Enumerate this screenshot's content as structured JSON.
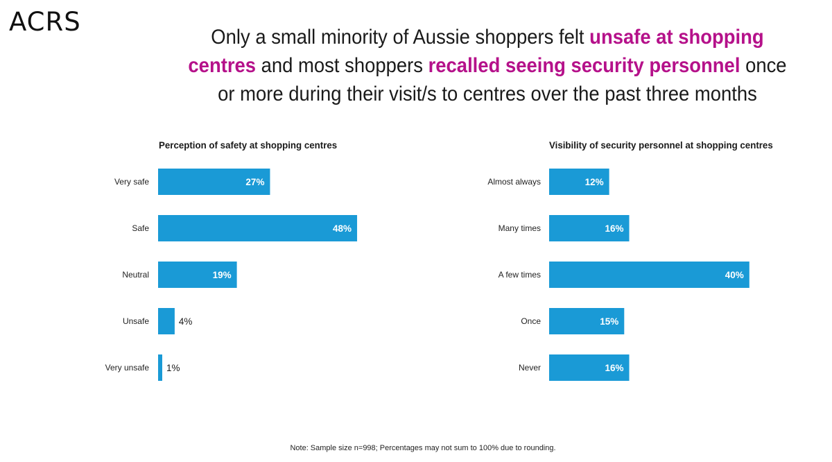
{
  "logo": "ACRS",
  "headline": {
    "part1": "Only a small minority of Aussie shoppers felt ",
    "highlight1": "unsafe at shopping centres",
    "part2": " and most shoppers ",
    "highlight2": "recalled seeing security personnel",
    "part3": " once or more during their visit/s to centres over the past three months",
    "highlight_color": "#b5118a"
  },
  "note": "Note: Sample size n=998; Percentages may not sum to 100% due to rounding.",
  "chart_data": [
    {
      "type": "bar",
      "orientation": "horizontal",
      "title": "Perception of safety at shopping centres",
      "categories": [
        "Very safe",
        "Safe",
        "Neutral",
        "Unsafe",
        "Very unsafe"
      ],
      "values": [
        27,
        48,
        19,
        4,
        1
      ],
      "value_labels": [
        "27%",
        "48%",
        "19%",
        "4%",
        "1%"
      ],
      "unit": "%",
      "bar_color": "#1a9ad6",
      "xlim": [
        0,
        100
      ],
      "grid": false,
      "legend": "none"
    },
    {
      "type": "bar",
      "orientation": "horizontal",
      "title": "Visibility of security personnel at shopping centres",
      "categories": [
        "Almost always",
        "Many times",
        "A few times",
        "Once",
        "Never"
      ],
      "values": [
        12,
        16,
        40,
        15,
        16
      ],
      "value_labels": [
        "12%",
        "16%",
        "40%",
        "15%",
        "16%"
      ],
      "unit": "%",
      "bar_color": "#1a9ad6",
      "xlim": [
        0,
        100
      ],
      "grid": false,
      "legend": "none"
    }
  ]
}
